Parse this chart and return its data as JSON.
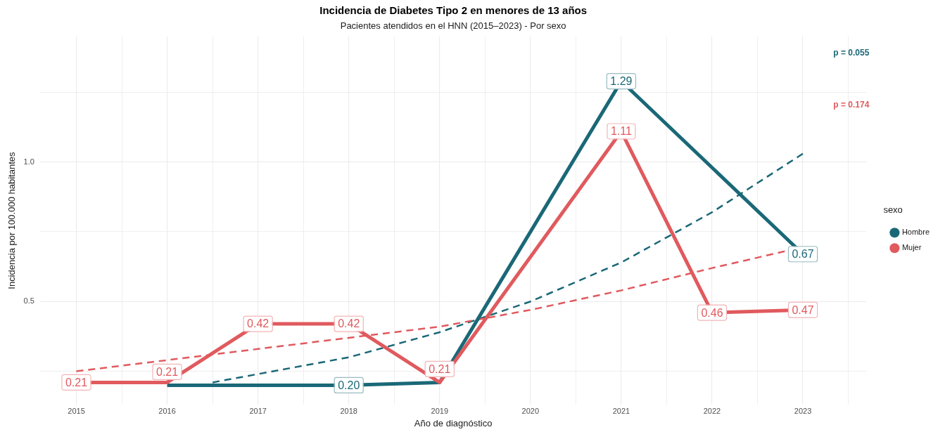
{
  "chart_data": {
    "type": "line",
    "title": "Incidencia de Diabetes Tipo 2 en menores de 13 años",
    "subtitle": "Pacientes atendidos en el HNN (2015–2023) - Por sexo",
    "xlabel": "Año de diagnóstico",
    "ylabel": "Incidencia por 100.000 habitantes",
    "legend_title": "sexo",
    "annotations": [
      "p = 0.055",
      "p = 0.174"
    ],
    "series": [
      {
        "type": "line",
        "line_style": "dashed",
        "color": "#1a6877",
        "x": [
          2016.5,
          2017,
          2018,
          2019,
          2020,
          2021,
          2022,
          2023
        ],
        "values": [
          0.21,
          0.24,
          0.3,
          0.39,
          0.5,
          0.64,
          0.82,
          1.03
        ]
      },
      {
        "type": "line",
        "line_style": "dashed",
        "color": "#e05a5e",
        "x": [
          2015,
          2016,
          2017,
          2018,
          2019,
          2020,
          2021,
          2022,
          2022.8
        ],
        "values": [
          0.25,
          0.29,
          0.33,
          0.37,
          0.41,
          0.47,
          0.54,
          0.62,
          0.68
        ]
      },
      {
        "name": "Hombre",
        "color": "#1a6877",
        "x": [
          2016,
          2018,
          2019,
          2021,
          2023
        ],
        "values": [
          0.2,
          0.2,
          0.21,
          1.29,
          0.67
        ],
        "value_labels": [
          null,
          "0.20",
          null,
          "1.29",
          "0.67"
        ]
      },
      {
        "name": "Mujer",
        "color": "#e05a5e",
        "x": [
          2015,
          2016,
          2017,
          2018,
          2019,
          2021,
          2022,
          2023
        ],
        "values": [
          0.21,
          0.21,
          0.42,
          0.42,
          0.21,
          1.11,
          0.46,
          0.47
        ],
        "value_labels": [
          "0.21",
          "0.21",
          "0.42",
          "0.42",
          "0.21",
          "1.11",
          "0.46",
          "0.47"
        ]
      }
    ],
    "xlim": [
      2014.6,
      2023.7
    ],
    "xticks": [
      2015,
      {
        "value": 2015.5,
        "label": null
      },
      2016,
      {
        "value": 2016.5,
        "label": null
      },
      2017,
      {
        "value": 2017.5,
        "label": null
      },
      2018,
      {
        "value": 2018.5,
        "label": null
      },
      2019,
      {
        "value": 2019.5,
        "label": null
      },
      2020,
      {
        "value": 2020.5,
        "label": null
      },
      2021,
      {
        "value": 2021.5,
        "label": null
      },
      2022,
      {
        "value": 2022.5,
        "label": null
      },
      2023,
      {
        "value": 2023.5,
        "label": null
      }
    ],
    "ylim": [
      0.13,
      1.45
    ],
    "yticks": [
      {
        "value": 0.25,
        "label": null
      },
      0.5,
      {
        "value": 0.75,
        "label": null
      },
      {
        "value": 1,
        "label": "1.0"
      },
      {
        "value": 1.25,
        "label": null
      }
    ],
    "grid": true,
    "legend": "right"
  }
}
